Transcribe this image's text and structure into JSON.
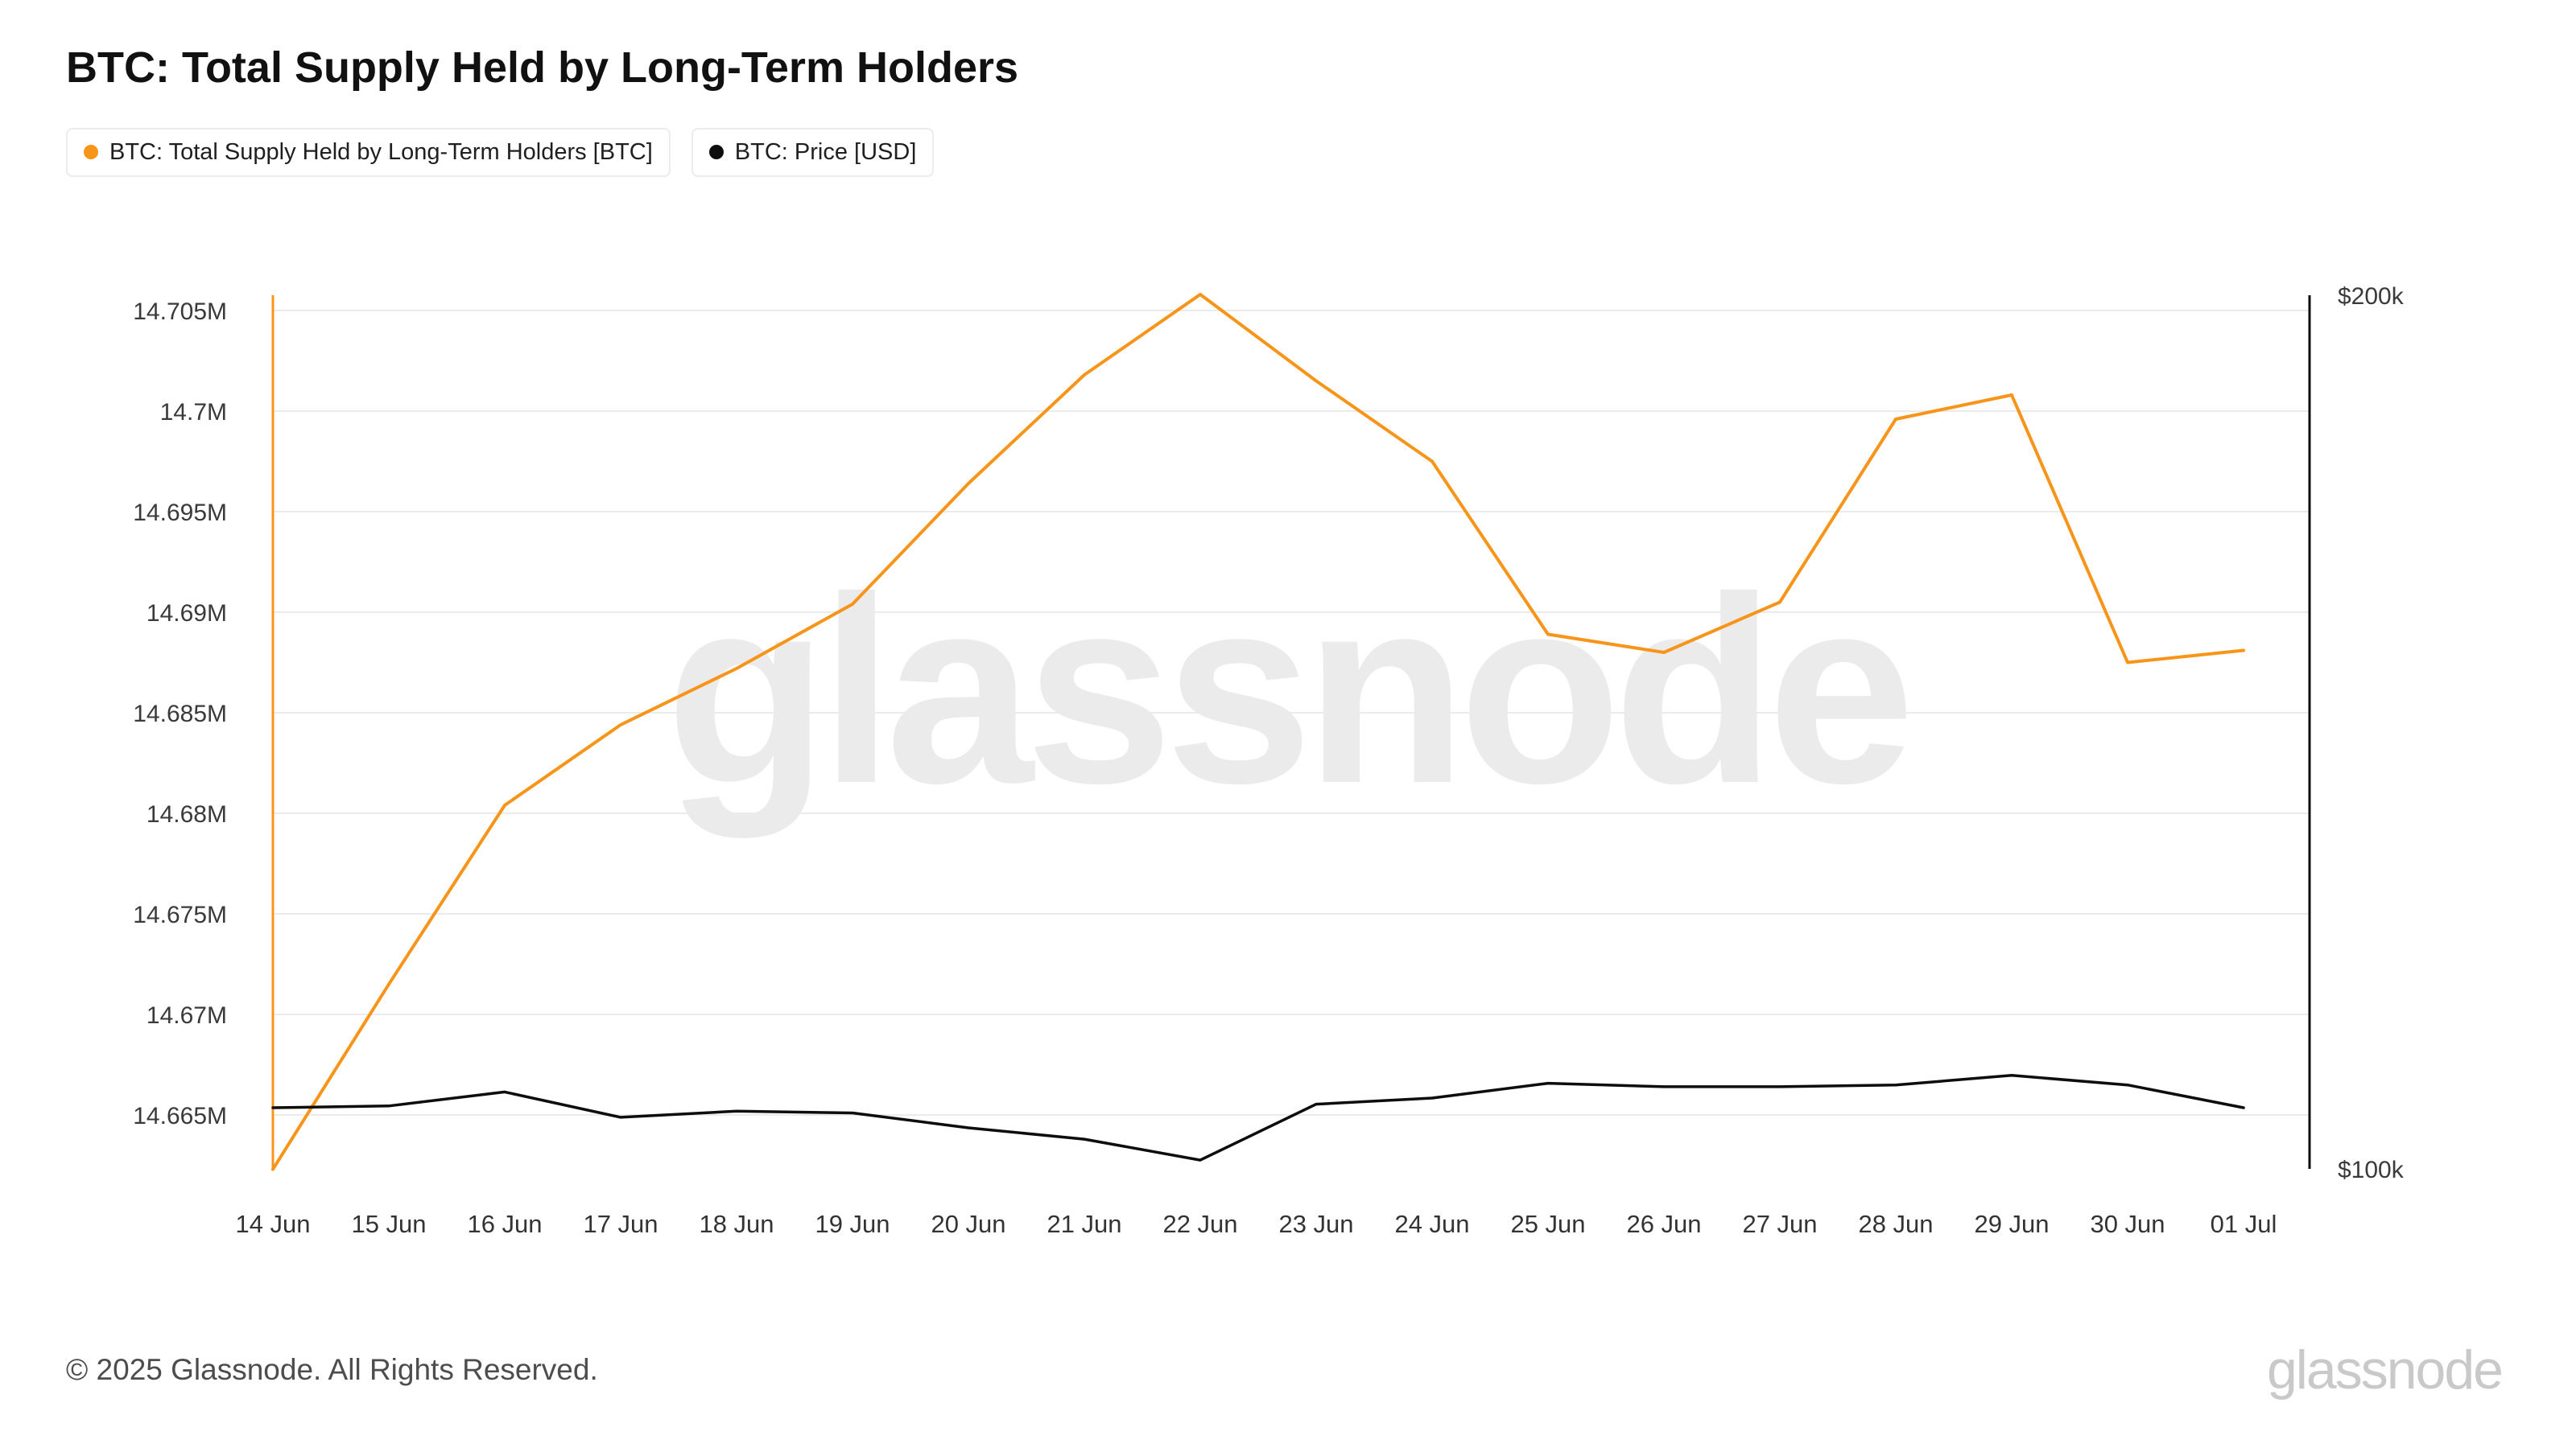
{
  "title": "BTC: Total Supply Held by Long-Term Holders",
  "legend": [
    {
      "label": "BTC: Total Supply Held by Long-Term Holders [BTC]",
      "color": "#f7941a"
    },
    {
      "label": "BTC: Price [USD]",
      "color": "#0d0d0d"
    }
  ],
  "watermark": "glassnode",
  "footer": {
    "copyright": "© 2025 Glassnode. All Rights Reserved.",
    "brand": "glassnode"
  },
  "chart_data": {
    "type": "line",
    "title": "BTC: Total Supply Held by Long-Term Holders",
    "grid": true,
    "legend_position": "top-left",
    "x": [
      "14 Jun",
      "15 Jun",
      "16 Jun",
      "17 Jun",
      "18 Jun",
      "19 Jun",
      "20 Jun",
      "21 Jun",
      "22 Jun",
      "23 Jun",
      "24 Jun",
      "25 Jun",
      "26 Jun",
      "27 Jun",
      "28 Jun",
      "29 Jun",
      "30 Jun",
      "01 Jul"
    ],
    "left_axis": {
      "label": "BTC: Total Supply Held by Long-Term Holders [BTC]",
      "unit": "M BTC",
      "color": "#f7941a",
      "ticks": [
        "14.705M",
        "14.7M",
        "14.695M",
        "14.69M",
        "14.685M",
        "14.68M",
        "14.675M",
        "14.67M",
        "14.665M"
      ],
      "tick_values": [
        14.705,
        14.7,
        14.695,
        14.69,
        14.685,
        14.68,
        14.675,
        14.67,
        14.665
      ],
      "range": [
        14.665,
        14.705
      ]
    },
    "right_axis": {
      "label": "BTC: Price [USD]",
      "unit": "k USD",
      "color": "#0d0d0d",
      "ticks": [
        "$200k",
        "$100k"
      ],
      "tick_values": [
        200,
        100
      ],
      "range": [
        100,
        200
      ]
    },
    "series": [
      {
        "name": "BTC: Total Supply Held by Long-Term Holders [BTC]",
        "axis": "left",
        "color": "#f7941a",
        "unit": "M BTC",
        "values": [
          14.6623,
          14.6715,
          14.6804,
          14.6844,
          14.6872,
          14.6904,
          14.6964,
          14.7018,
          14.7058,
          14.7015,
          14.6975,
          14.6889,
          14.688,
          14.6905,
          14.6996,
          14.7008,
          14.6875,
          14.6881
        ]
      },
      {
        "name": "BTC: Price [USD]",
        "axis": "right",
        "color": "#0d0d0d",
        "unit": "k USD",
        "values": [
          107.0,
          107.2,
          108.8,
          105.9,
          106.6,
          106.4,
          104.7,
          103.4,
          101.0,
          107.4,
          108.1,
          109.8,
          109.4,
          109.4,
          109.6,
          110.7,
          109.6,
          107.0
        ]
      }
    ]
  }
}
